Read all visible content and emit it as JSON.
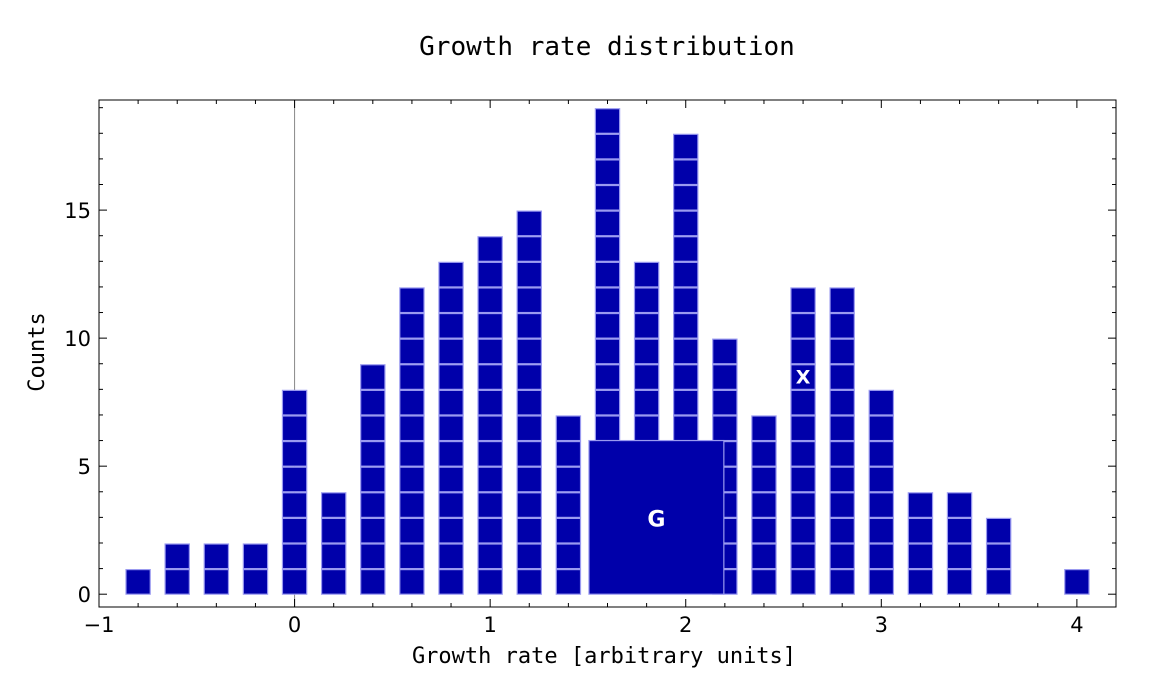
{
  "chart_data": {
    "type": "bar",
    "title": "Growth rate distribution",
    "xlabel": "Growth rate [arbitrary units]",
    "ylabel": "Counts",
    "xlim": [
      -1.0,
      4.2
    ],
    "ylim": [
      -0.5,
      19.3
    ],
    "x_ticks": [
      {
        "value": -1,
        "label": "−1"
      },
      {
        "value": 0,
        "label": "0"
      },
      {
        "value": 1,
        "label": "1"
      },
      {
        "value": 2,
        "label": "2"
      },
      {
        "value": 3,
        "label": "3"
      },
      {
        "value": 4,
        "label": "4"
      }
    ],
    "y_ticks": [
      {
        "value": 0,
        "label": "0"
      },
      {
        "value": 5,
        "label": "5"
      },
      {
        "value": 10,
        "label": "10"
      },
      {
        "value": 15,
        "label": "15"
      }
    ],
    "bin_width": 0.2,
    "bars": [
      {
        "x": -0.8,
        "count": 1
      },
      {
        "x": -0.6,
        "count": 2
      },
      {
        "x": -0.4,
        "count": 2
      },
      {
        "x": -0.2,
        "count": 2
      },
      {
        "x": 0.0,
        "count": 8
      },
      {
        "x": 0.2,
        "count": 4
      },
      {
        "x": 0.4,
        "count": 9
      },
      {
        "x": 0.6,
        "count": 12
      },
      {
        "x": 0.8,
        "count": 13
      },
      {
        "x": 1.0,
        "count": 14
      },
      {
        "x": 1.2,
        "count": 15
      },
      {
        "x": 1.4,
        "count": 7
      },
      {
        "x": 1.6,
        "count": 19
      },
      {
        "x": 1.8,
        "count": 13
      },
      {
        "x": 2.0,
        "count": 18
      },
      {
        "x": 2.2,
        "count": 10
      },
      {
        "x": 2.4,
        "count": 7
      },
      {
        "x": 2.6,
        "count": 12
      },
      {
        "x": 2.8,
        "count": 12
      },
      {
        "x": 3.0,
        "count": 8
      },
      {
        "x": 3.2,
        "count": 4
      },
      {
        "x": 3.4,
        "count": 4
      },
      {
        "x": 3.6,
        "count": 3
      },
      {
        "x": 4.0,
        "count": 1
      }
    ],
    "block": {
      "label": "G",
      "x_range": [
        1.5,
        2.2
      ],
      "count_range": [
        0,
        6
      ]
    },
    "annotations": [
      {
        "label": "X",
        "x": 2.6,
        "y": 8.5
      }
    ],
    "reference_line_x": 0,
    "grid": false,
    "colors": {
      "bar": "#0000AA",
      "cell_border": "#9a9af0"
    }
  }
}
